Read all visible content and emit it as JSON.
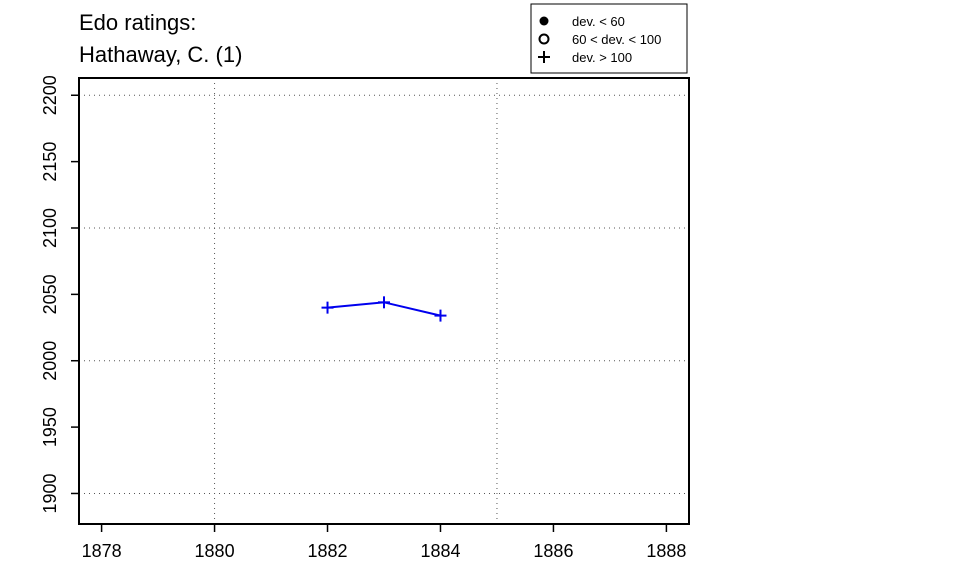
{
  "chart_data": {
    "type": "line",
    "title_lines": [
      "Edo ratings:",
      "Hathaway, C. (1)"
    ],
    "xlabel": "",
    "ylabel": "",
    "xlim": [
      1877.6,
      1888.4
    ],
    "ylim": [
      1877,
      2213
    ],
    "x_ticks": [
      1878,
      1880,
      1882,
      1884,
      1886,
      1888
    ],
    "y_ticks": [
      1900,
      1950,
      2000,
      2050,
      2100,
      2150,
      2200
    ],
    "grid_x": [
      1880,
      1885
    ],
    "grid_y": [
      1900,
      2000,
      2100,
      2200
    ],
    "grid": "dotted",
    "series": [
      {
        "color": "#0000ee",
        "marker": "plus",
        "points": [
          {
            "x": 1882,
            "y": 2040
          },
          {
            "x": 1883,
            "y": 2044
          },
          {
            "x": 1884,
            "y": 2034
          }
        ]
      }
    ],
    "legend": {
      "placement": "top-right",
      "entries": [
        {
          "marker": "filled-circle",
          "label": "dev. < 60"
        },
        {
          "marker": "open-circle",
          "label": "60 < dev. < 100"
        },
        {
          "marker": "plus",
          "label": "dev. > 100"
        }
      ]
    }
  }
}
